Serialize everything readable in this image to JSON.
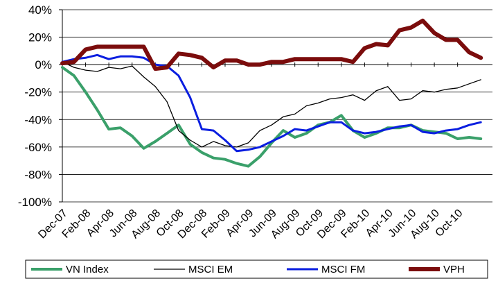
{
  "chart_data": {
    "type": "line",
    "title": "",
    "xlabel": "",
    "ylabel": "",
    "ylim": [
      -100,
      40
    ],
    "yticks": [
      40,
      20,
      0,
      -20,
      -40,
      -60,
      -80,
      -100
    ],
    "ytick_labels": [
      "40%",
      "20%",
      "0%",
      "-20%",
      "-40%",
      "-60%",
      "-80%",
      "-100%"
    ],
    "xlim": [
      "2007-12",
      "2011-01"
    ],
    "xtick_labels": [
      "Dec-07",
      "Feb-08",
      "Apr-08",
      "Jun-08",
      "Aug-08",
      "Oct-08",
      "Dec-08",
      "Feb-09",
      "Apr-09",
      "Jun-09",
      "Aug-09",
      "Oct-09",
      "Dec-09",
      "Feb-10",
      "Apr-10",
      "Jun-10",
      "Aug-10",
      "Oct-10"
    ],
    "grid": "horizontal",
    "legend_position": "bottom",
    "series": [
      {
        "name": "VN Index",
        "color": "#3aa06a",
        "width": 4,
        "points": [
          [
            "2007-12",
            -2
          ],
          [
            "2008-01",
            -8
          ],
          [
            "2008-02",
            -20
          ],
          [
            "2008-03",
            -33
          ],
          [
            "2008-04",
            -47
          ],
          [
            "2008-05",
            -46
          ],
          [
            "2008-06",
            -52
          ],
          [
            "2008-07",
            -61
          ],
          [
            "2008-08",
            -56
          ],
          [
            "2008-09",
            -50
          ],
          [
            "2008-10",
            -44
          ],
          [
            "2008-11",
            -58
          ],
          [
            "2008-12",
            -64
          ],
          [
            "2009-01",
            -68
          ],
          [
            "2009-02",
            -69
          ],
          [
            "2009-03",
            -72
          ],
          [
            "2009-04",
            -74
          ],
          [
            "2009-05",
            -67
          ],
          [
            "2009-06",
            -57
          ],
          [
            "2009-07",
            -48
          ],
          [
            "2009-08",
            -53
          ],
          [
            "2009-09",
            -50
          ],
          [
            "2009-10",
            -44
          ],
          [
            "2009-11",
            -42
          ],
          [
            "2009-12",
            -37
          ],
          [
            "2010-01",
            -48
          ],
          [
            "2010-02",
            -53
          ],
          [
            "2010-03",
            -50
          ],
          [
            "2010-04",
            -46
          ],
          [
            "2010-05",
            -46
          ],
          [
            "2010-06",
            -44
          ],
          [
            "2010-07",
            -48
          ],
          [
            "2010-08",
            -49
          ],
          [
            "2010-09",
            -50
          ],
          [
            "2010-10",
            -54
          ],
          [
            "2010-11",
            -53
          ],
          [
            "2010-12",
            -54
          ]
        ]
      },
      {
        "name": "MSCI EM",
        "color": "#000000",
        "width": 1.3,
        "points": [
          [
            "2007-12",
            2
          ],
          [
            "2008-01",
            -2
          ],
          [
            "2008-02",
            -4
          ],
          [
            "2008-03",
            -5
          ],
          [
            "2008-04",
            -2
          ],
          [
            "2008-05",
            -3
          ],
          [
            "2008-06",
            -1
          ],
          [
            "2008-07",
            -9
          ],
          [
            "2008-08",
            -16
          ],
          [
            "2008-09",
            -27
          ],
          [
            "2008-10",
            -48
          ],
          [
            "2008-11",
            -55
          ],
          [
            "2008-12",
            -60
          ],
          [
            "2009-01",
            -56
          ],
          [
            "2009-02",
            -59
          ],
          [
            "2009-03",
            -60
          ],
          [
            "2009-04",
            -57
          ],
          [
            "2009-05",
            -48
          ],
          [
            "2009-06",
            -44
          ],
          [
            "2009-07",
            -38
          ],
          [
            "2009-08",
            -36
          ],
          [
            "2009-09",
            -30
          ],
          [
            "2009-10",
            -28
          ],
          [
            "2009-11",
            -25
          ],
          [
            "2009-12",
            -24
          ],
          [
            "2010-01",
            -22
          ],
          [
            "2010-02",
            -26
          ],
          [
            "2010-03",
            -19
          ],
          [
            "2010-04",
            -16
          ],
          [
            "2010-05",
            -26
          ],
          [
            "2010-06",
            -25
          ],
          [
            "2010-07",
            -19
          ],
          [
            "2010-08",
            -20
          ],
          [
            "2010-09",
            -18
          ],
          [
            "2010-10",
            -17
          ],
          [
            "2010-11",
            -14
          ],
          [
            "2010-12",
            -11
          ]
        ]
      },
      {
        "name": "MSCI FM",
        "color": "#0a1ee0",
        "width": 3,
        "points": [
          [
            "2007-12",
            2
          ],
          [
            "2008-01",
            4
          ],
          [
            "2008-02",
            5
          ],
          [
            "2008-03",
            7
          ],
          [
            "2008-04",
            4
          ],
          [
            "2008-05",
            6
          ],
          [
            "2008-06",
            6
          ],
          [
            "2008-07",
            5
          ],
          [
            "2008-08",
            0
          ],
          [
            "2008-09",
            -1
          ],
          [
            "2008-10",
            -8
          ],
          [
            "2008-11",
            -24
          ],
          [
            "2008-12",
            -47
          ],
          [
            "2009-01",
            -48
          ],
          [
            "2009-02",
            -55
          ],
          [
            "2009-03",
            -63
          ],
          [
            "2009-04",
            -62
          ],
          [
            "2009-05",
            -60
          ],
          [
            "2009-06",
            -56
          ],
          [
            "2009-07",
            -52
          ],
          [
            "2009-08",
            -47
          ],
          [
            "2009-09",
            -48
          ],
          [
            "2009-10",
            -45
          ],
          [
            "2009-11",
            -42
          ],
          [
            "2009-12",
            -42
          ],
          [
            "2010-01",
            -48
          ],
          [
            "2010-02",
            -50
          ],
          [
            "2010-03",
            -49
          ],
          [
            "2010-04",
            -47
          ],
          [
            "2010-05",
            -45
          ],
          [
            "2010-06",
            -44
          ],
          [
            "2010-07",
            -49
          ],
          [
            "2010-08",
            -50
          ],
          [
            "2010-09",
            -48
          ],
          [
            "2010-10",
            -47
          ],
          [
            "2010-11",
            -44
          ],
          [
            "2010-12",
            -42
          ]
        ]
      },
      {
        "name": "VPH",
        "color": "#7b0c0c",
        "width": 6,
        "points": [
          [
            "2007-12",
            1
          ],
          [
            "2008-01",
            2
          ],
          [
            "2008-02",
            11
          ],
          [
            "2008-03",
            13
          ],
          [
            "2008-04",
            13
          ],
          [
            "2008-05",
            13
          ],
          [
            "2008-06",
            13
          ],
          [
            "2008-07",
            13
          ],
          [
            "2008-08",
            -3
          ],
          [
            "2008-09",
            -2
          ],
          [
            "2008-10",
            8
          ],
          [
            "2008-11",
            7
          ],
          [
            "2008-12",
            5
          ],
          [
            "2009-01",
            -2
          ],
          [
            "2009-02",
            3
          ],
          [
            "2009-03",
            3
          ],
          [
            "2009-04",
            0
          ],
          [
            "2009-05",
            0
          ],
          [
            "2009-06",
            2
          ],
          [
            "2009-07",
            2
          ],
          [
            "2009-08",
            4
          ],
          [
            "2009-09",
            4
          ],
          [
            "2009-10",
            4
          ],
          [
            "2009-11",
            4
          ],
          [
            "2009-12",
            4
          ],
          [
            "2010-01",
            2
          ],
          [
            "2010-02",
            12
          ],
          [
            "2010-03",
            15
          ],
          [
            "2010-04",
            14
          ],
          [
            "2010-05",
            25
          ],
          [
            "2010-06",
            27
          ],
          [
            "2010-07",
            32
          ],
          [
            "2010-08",
            23
          ],
          [
            "2010-09",
            18
          ],
          [
            "2010-10",
            18
          ],
          [
            "2010-11",
            9
          ],
          [
            "2010-12",
            5
          ]
        ]
      }
    ]
  }
}
